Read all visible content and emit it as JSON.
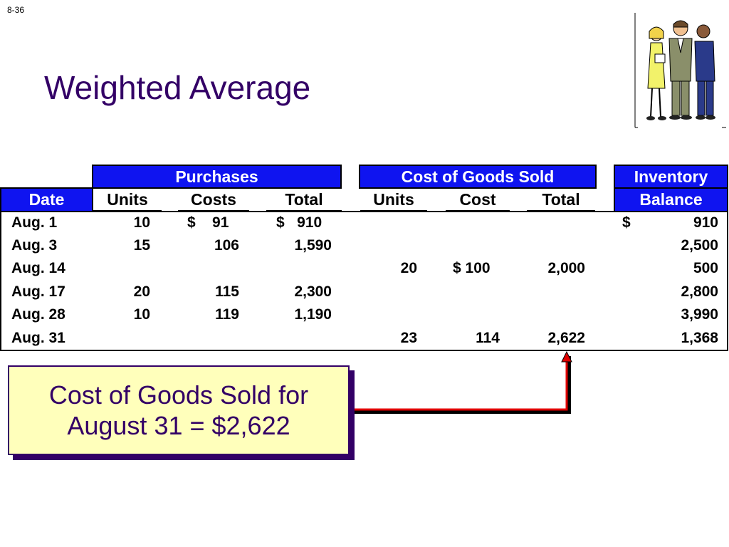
{
  "slide_number": "8-36",
  "title": "Weighted Average",
  "table": {
    "group_headers": {
      "purchases": "Purchases",
      "cogs": "Cost of Goods Sold",
      "inventory_line1": "Inventory",
      "inventory_line2": "Balance",
      "date": "Date"
    },
    "column_headers": {
      "p_units": "Units",
      "p_costs": "Costs",
      "p_total": "Total",
      "c_units": "Units",
      "c_cost": "Cost",
      "c_total": "Total"
    },
    "rows": [
      {
        "date": "Aug. 1",
        "p_units": "10",
        "p_costs": "$    91",
        "p_total": "$   910",
        "c_units": "",
        "c_cost": "",
        "c_total": "",
        "bal_sign": "$",
        "balance": "910"
      },
      {
        "date": "Aug. 3",
        "p_units": "15",
        "p_costs": "106",
        "p_total": "1,590",
        "c_units": "",
        "c_cost": "",
        "c_total": "",
        "bal_sign": "",
        "balance": "2,500"
      },
      {
        "date": "Aug. 14",
        "p_units": "",
        "p_costs": "",
        "p_total": "",
        "c_units": "20",
        "c_cost": "$ 100",
        "c_total": "2,000",
        "bal_sign": "",
        "balance": "500"
      },
      {
        "date": "Aug. 17",
        "p_units": "20",
        "p_costs": "115",
        "p_total": "2,300",
        "c_units": "",
        "c_cost": "",
        "c_total": "",
        "bal_sign": "",
        "balance": "2,800"
      },
      {
        "date": "Aug. 28",
        "p_units": "10",
        "p_costs": "119",
        "p_total": "1,190",
        "c_units": "",
        "c_cost": "",
        "c_total": "",
        "bal_sign": "",
        "balance": "3,990"
      },
      {
        "date": "Aug. 31",
        "p_units": "",
        "p_costs": "",
        "p_total": "",
        "c_units": "23",
        "c_cost": "114",
        "c_total": "2,622",
        "bal_sign": "",
        "balance": "1,368"
      }
    ]
  },
  "callout": {
    "line1": "Cost of Goods Sold for",
    "line2": "August 31 = $2,622"
  },
  "colors": {
    "header_blue": "#0f14f0",
    "title_purple": "#330066",
    "callout_fill": "#ffffbb",
    "arrow_red": "#e00000"
  },
  "clipart_icon": "business-people-clipart"
}
